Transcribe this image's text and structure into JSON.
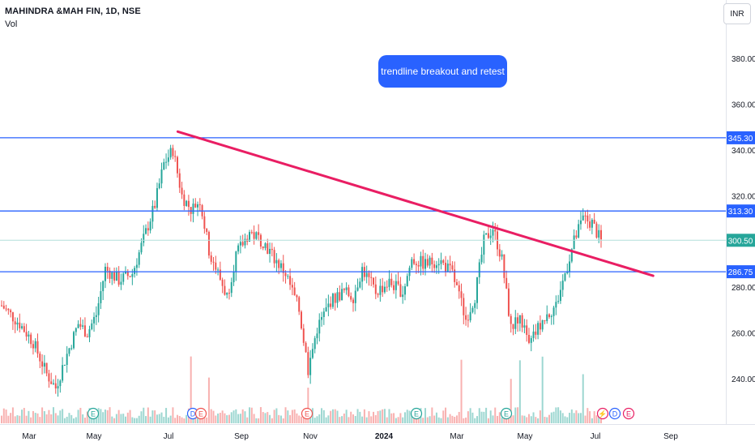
{
  "header": {
    "title": "MAHINDRA &MAH FIN, 1D, NSE",
    "volume_label": "Vol",
    "currency": "INR"
  },
  "annotation": {
    "text": "trendline breakout and retest",
    "color": "#2962ff"
  },
  "chart_data": {
    "type": "candlestick",
    "x_axis_ticks": [
      "Mar",
      "May",
      "Jul",
      "Sep",
      "Nov",
      "2024",
      "Mar",
      "May",
      "Jul",
      "Sep"
    ],
    "y_axis_ticks": [
      380,
      360,
      340,
      320,
      280,
      260,
      240
    ],
    "ylim": [
      222,
      398
    ],
    "horizontal_levels": [
      {
        "label": "345.30",
        "value": 345.3,
        "color": "#2962ff"
      },
      {
        "label": "313.30",
        "value": 313.3,
        "color": "#2962ff"
      },
      {
        "label": "286.75",
        "value": 286.75,
        "color": "#2962ff"
      }
    ],
    "last_price": {
      "label": "300.50",
      "value": 300.5,
      "color": "#26a69a"
    },
    "trendline": {
      "color": "#e91e63",
      "start": {
        "date": "2023-06-20",
        "value": 348
      },
      "end": {
        "date": "2024-08-25",
        "value": 285
      }
    },
    "price_path": [
      {
        "t": 0,
        "v": 272
      },
      {
        "t": 8,
        "v": 264
      },
      {
        "t": 14,
        "v": 256
      },
      {
        "t": 20,
        "v": 242
      },
      {
        "t": 24,
        "v": 236
      },
      {
        "t": 28,
        "v": 248
      },
      {
        "t": 34,
        "v": 264
      },
      {
        "t": 38,
        "v": 260
      },
      {
        "t": 42,
        "v": 268
      },
      {
        "t": 46,
        "v": 288
      },
      {
        "t": 52,
        "v": 283
      },
      {
        "t": 58,
        "v": 286
      },
      {
        "t": 62,
        "v": 298
      },
      {
        "t": 68,
        "v": 316
      },
      {
        "t": 72,
        "v": 334
      },
      {
        "t": 76,
        "v": 340
      },
      {
        "t": 80,
        "v": 320
      },
      {
        "t": 84,
        "v": 314
      },
      {
        "t": 88,
        "v": 318
      },
      {
        "t": 92,
        "v": 296
      },
      {
        "t": 96,
        "v": 286
      },
      {
        "t": 100,
        "v": 276
      },
      {
        "t": 104,
        "v": 294
      },
      {
        "t": 110,
        "v": 304
      },
      {
        "t": 116,
        "v": 300
      },
      {
        "t": 120,
        "v": 294
      },
      {
        "t": 126,
        "v": 286
      },
      {
        "t": 132,
        "v": 270
      },
      {
        "t": 136,
        "v": 244
      },
      {
        "t": 140,
        "v": 262
      },
      {
        "t": 146,
        "v": 274
      },
      {
        "t": 152,
        "v": 278
      },
      {
        "t": 156,
        "v": 276
      },
      {
        "t": 160,
        "v": 288
      },
      {
        "t": 166,
        "v": 278
      },
      {
        "t": 172,
        "v": 282
      },
      {
        "t": 178,
        "v": 278
      },
      {
        "t": 182,
        "v": 292
      },
      {
        "t": 188,
        "v": 290
      },
      {
        "t": 194,
        "v": 292
      },
      {
        "t": 200,
        "v": 286
      },
      {
        "t": 206,
        "v": 266
      },
      {
        "t": 210,
        "v": 276
      },
      {
        "t": 214,
        "v": 300
      },
      {
        "t": 218,
        "v": 306
      },
      {
        "t": 222,
        "v": 292
      },
      {
        "t": 226,
        "v": 262
      },
      {
        "t": 230,
        "v": 268
      },
      {
        "t": 234,
        "v": 254
      },
      {
        "t": 238,
        "v": 262
      },
      {
        "t": 242,
        "v": 268
      },
      {
        "t": 246,
        "v": 272
      },
      {
        "t": 250,
        "v": 286
      },
      {
        "t": 254,
        "v": 300
      },
      {
        "t": 258,
        "v": 310
      },
      {
        "t": 262,
        "v": 308
      },
      {
        "t": 266,
        "v": 300
      }
    ],
    "volume_profile": "varies with spikes near Jul, Nov, Apr"
  }
}
